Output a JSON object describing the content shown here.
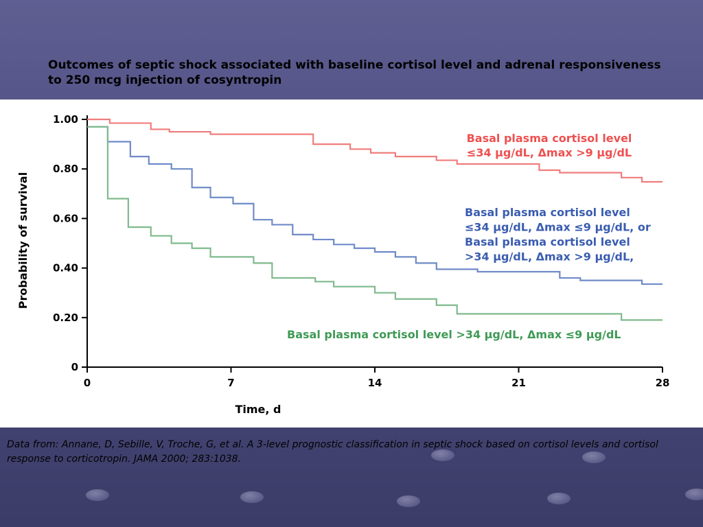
{
  "slide": {
    "title": "Outcomes of septic shock associated with baseline cortisol level and adrenal responsiveness to 250 mcg injection of cosyntropin",
    "citation": "Data from: Annane, D, Sebille, V, Troche, G, et al. A 3-level prognostic classification in septic shock based on cortisol levels and cortisol response to corticotropin. JAMA 2000; 283:1038."
  },
  "colors": {
    "red": "#ee5050",
    "blue": "#3a5cb0",
    "green": "#3f9a55",
    "red_line": "#f07c7c",
    "blue_line": "#6f8ac8",
    "green_line": "#7fba8c"
  },
  "chart_data": {
    "type": "line",
    "step": true,
    "xlabel": "Time, d",
    "ylabel": "Probability of survival",
    "xlim": [
      0,
      28
    ],
    "ylim": [
      0,
      1
    ],
    "x_ticks": [
      0,
      7,
      14,
      21,
      28
    ],
    "x_tick_labels": [
      "0",
      "7",
      "14",
      "21",
      "28"
    ],
    "y_ticks": [
      0,
      0.2,
      0.4,
      0.6,
      0.8,
      1.0
    ],
    "y_tick_labels": [
      "0",
      "0.20",
      "0.40",
      "0.60",
      "0.80",
      "1.00"
    ],
    "grid": false,
    "series": [
      {
        "key": "red",
        "label_lines": [
          "Basal plasma cortisol level",
          "≤34 µg/dL, Δmax >9 µg/dL"
        ],
        "x": [
          0,
          1.1,
          3.1,
          4.0,
          6.0,
          11.0,
          12.8,
          13.8,
          15.0,
          17.0,
          18.0,
          22.0,
          23.0,
          26.0,
          27.0,
          28.0
        ],
        "y": [
          1.0,
          0.985,
          0.96,
          0.95,
          0.94,
          0.9,
          0.88,
          0.865,
          0.85,
          0.835,
          0.82,
          0.795,
          0.785,
          0.765,
          0.748,
          0.748
        ]
      },
      {
        "key": "blue",
        "label_lines": [
          "Basal plasma cortisol level",
          "≤34 µg/dL, Δmax ≤9 µg/dL, or",
          "Basal plasma cortisol level",
          ">34 µg/dL, Δmax >9 µg/dL,"
        ],
        "x": [
          0,
          1.0,
          2.1,
          3.0,
          4.1,
          5.1,
          6.0,
          7.1,
          8.1,
          9.0,
          10.0,
          11.0,
          12.0,
          13.0,
          14.0,
          15.0,
          16.0,
          17.0,
          19.0,
          23.0,
          24.0,
          27.0,
          28.0
        ],
        "y": [
          0.97,
          0.91,
          0.85,
          0.82,
          0.8,
          0.725,
          0.685,
          0.66,
          0.595,
          0.575,
          0.535,
          0.515,
          0.495,
          0.48,
          0.465,
          0.445,
          0.42,
          0.395,
          0.385,
          0.36,
          0.35,
          0.335,
          0.335
        ]
      },
      {
        "key": "green",
        "label_lines": [
          "Basal plasma cortisol level >34 µg/dL, Δmax ≤9 µg/dL"
        ],
        "x": [
          0,
          1.0,
          2.0,
          3.1,
          4.1,
          5.1,
          6.0,
          8.1,
          9.0,
          11.1,
          12.0,
          14.0,
          15.0,
          17.0,
          18.0,
          26.0,
          28.0
        ],
        "y": [
          0.97,
          0.68,
          0.565,
          0.53,
          0.5,
          0.48,
          0.445,
          0.42,
          0.36,
          0.345,
          0.325,
          0.3,
          0.275,
          0.25,
          0.215,
          0.19,
          0.19
        ]
      }
    ]
  }
}
